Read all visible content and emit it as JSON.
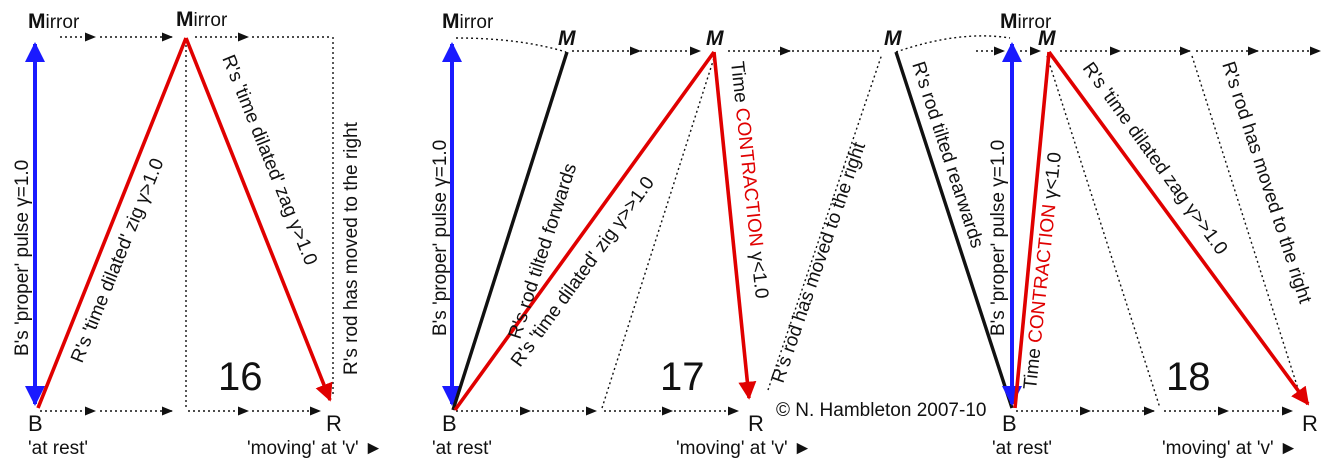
{
  "colors": {
    "blue": "#1a1aff",
    "red": "#e00000",
    "black": "#111111"
  },
  "copyright": "© N. Hambleton 2007-10",
  "panel16": {
    "number": "16",
    "mirror_left_initial": "M",
    "mirror_left_rest": "irror",
    "mirror_mid_initial": "M",
    "mirror_mid_rest": "irror",
    "b": "B",
    "r": "R",
    "at_rest": "'at rest'",
    "moving": "'moving' at 'v'",
    "moving_arrow": "►",
    "proper_pulse": "B's 'proper' pulse γ=1.0",
    "zig": "R's 'time dilated' zig γ>1.0",
    "zag": "R's 'time dilated' zag γ>1.0",
    "rod_moved": "R's rod has moved to the right"
  },
  "panel17": {
    "number": "17",
    "mirror_initial": "M",
    "mirror_rest": "irror",
    "m1": "M",
    "m2": "M",
    "b": "B",
    "r": "R",
    "at_rest": "'at rest'",
    "moving": "'moving' at 'v'",
    "moving_arrow": "►",
    "proper_pulse": "B's 'proper' pulse γ=1.0",
    "rod_tilted": "R's rod tilted forwards",
    "zig": "R's 'time dilated' zig γ>>1.0",
    "time": "Time",
    "contraction": "CONTRACTION",
    "gamma": "γ<1.0",
    "rod_moved": "R's rod has moved to the right"
  },
  "panel18": {
    "number": "18",
    "m_left": "M",
    "mirror_initial": "M",
    "mirror_rest": "irror",
    "m_mid": "M",
    "b": "B",
    "r": "R",
    "at_rest": "'at rest'",
    "moving": "'moving' at 'v'",
    "moving_arrow": "►",
    "rod_tilted": "R's rod tilted rearwards",
    "proper_pulse": "B's 'proper' pulse γ=1.0",
    "time": "Time",
    "contraction": "CONTRACTION",
    "gamma": "γ<1.0",
    "zag": "R's 'time dilated zag γ>>1.0",
    "rod_moved": "R's rod has moved to the right"
  }
}
